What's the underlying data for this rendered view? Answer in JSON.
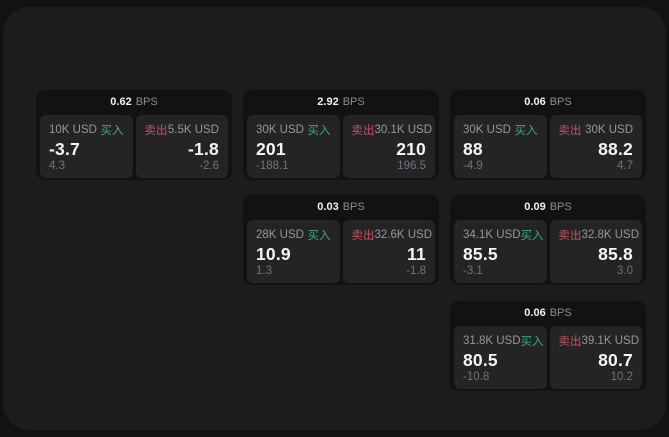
{
  "labels": {
    "bps_unit": "BPS",
    "buy": "买入",
    "sell": "卖出"
  },
  "colors": {
    "page_background": "#121213",
    "surface_background": "#1c1c1e",
    "card_background": "#121214",
    "panel_background": "#242427",
    "buy_green": "#3fa87c",
    "sell_red": "#c64f63",
    "value_white": "#f4f4f5",
    "label_gray": "#97979b",
    "sub_gray": "#737378"
  },
  "cards": [
    {
      "bps": "0.62",
      "buy": {
        "amount": "10K USD",
        "price": "-3.7",
        "change": "4.3"
      },
      "sell": {
        "amount": "5.5K USD",
        "price": "-1.8",
        "change": "-2.6"
      }
    },
    {
      "bps": "2.92",
      "buy": {
        "amount": "30K USD",
        "price": "201",
        "change": "-188.1"
      },
      "sell": {
        "amount": "30.1K USD",
        "price": "210",
        "change": "196.5"
      }
    },
    {
      "bps": "0.03",
      "buy": {
        "amount": "28K USD",
        "price": "10.9",
        "change": "1.3"
      },
      "sell": {
        "amount": "32.6K USD",
        "price": "11",
        "change": "-1.8"
      }
    },
    {
      "bps": "0.06",
      "buy": {
        "amount": "30K USD",
        "price": "88",
        "change": "-4.9"
      },
      "sell": {
        "amount": "30K USD",
        "price": "88.2",
        "change": "4.7"
      }
    },
    {
      "bps": "0.09",
      "buy": {
        "amount": "34.1K USD",
        "price": "85.5",
        "change": "-3.1"
      },
      "sell": {
        "amount": "32.8K USD",
        "price": "85.8",
        "change": "3.0"
      }
    },
    {
      "bps": "0.06",
      "buy": {
        "amount": "31.8K USD",
        "price": "80.5",
        "change": "-10.8"
      },
      "sell": {
        "amount": "39.1K USD",
        "price": "80.7",
        "change": "10.2"
      }
    }
  ]
}
